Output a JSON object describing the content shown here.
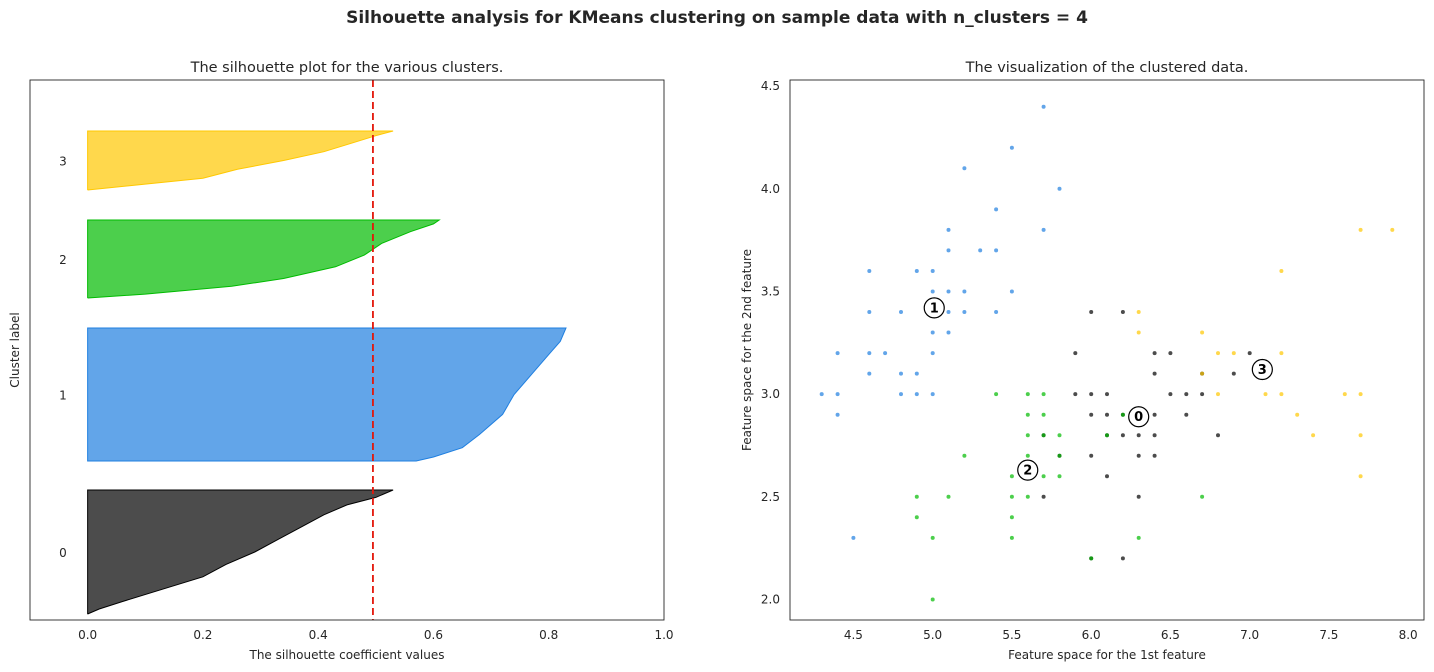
{
  "suptitle": "Silhouette analysis for KMeans clustering on sample data with n_clusters = 4",
  "chart_data": [
    {
      "type": "area",
      "title": "The silhouette plot for the various clusters.",
      "xlabel": "The silhouette coefficient values",
      "ylabel": "Cluster label",
      "xlim": [
        -0.1,
        1.0
      ],
      "xticks": [
        0.0,
        0.2,
        0.4,
        0.6,
        0.8,
        1.0
      ],
      "xtick_labels": [
        "0.0",
        "0.2",
        "0.4",
        "0.6",
        "0.8",
        "1.0"
      ],
      "grid": false,
      "average_silhouette_score": 0.495,
      "average_line_color": "#e3170a",
      "clusters": [
        {
          "label": "0",
          "color": "#000000",
          "max_value": 0.53,
          "min_value": 0.0,
          "profile": [
            [
              0,
              0.53
            ],
            [
              0.06,
              0.5
            ],
            [
              0.12,
              0.45
            ],
            [
              0.2,
              0.41
            ],
            [
              0.3,
              0.37
            ],
            [
              0.4,
              0.33
            ],
            [
              0.5,
              0.29
            ],
            [
              0.6,
              0.24
            ],
            [
              0.7,
              0.2
            ],
            [
              0.8,
              0.13
            ],
            [
              0.9,
              0.06
            ],
            [
              0.96,
              0.02
            ],
            [
              1,
              0.0
            ]
          ]
        },
        {
          "label": "1",
          "color": "#1f7fe0",
          "max_value": 0.83,
          "min_value": 0.57,
          "profile": [
            [
              0,
              0.83
            ],
            [
              0.1,
              0.82
            ],
            [
              0.2,
              0.8
            ],
            [
              0.35,
              0.77
            ],
            [
              0.5,
              0.74
            ],
            [
              0.65,
              0.72
            ],
            [
              0.8,
              0.68
            ],
            [
              0.9,
              0.65
            ],
            [
              0.97,
              0.6
            ],
            [
              1,
              0.57
            ]
          ]
        },
        {
          "label": "2",
          "color": "#00bb00",
          "max_value": 0.61,
          "min_value": 0.0,
          "profile": [
            [
              0,
              0.61
            ],
            [
              0.05,
              0.6
            ],
            [
              0.15,
              0.56
            ],
            [
              0.3,
              0.51
            ],
            [
              0.45,
              0.48
            ],
            [
              0.6,
              0.43
            ],
            [
              0.75,
              0.34
            ],
            [
              0.85,
              0.25
            ],
            [
              0.95,
              0.1
            ],
            [
              1,
              0.0
            ]
          ]
        },
        {
          "label": "3",
          "color": "#ffc800",
          "max_value": 0.53,
          "min_value": 0.0,
          "profile": [
            [
              0,
              0.53
            ],
            [
              0.08,
              0.5
            ],
            [
              0.2,
              0.46
            ],
            [
              0.35,
              0.41
            ],
            [
              0.5,
              0.34
            ],
            [
              0.65,
              0.26
            ],
            [
              0.8,
              0.2
            ],
            [
              0.9,
              0.1
            ],
            [
              1,
              0.0
            ]
          ]
        }
      ]
    },
    {
      "type": "scatter",
      "title": "The visualization of the clustered data.",
      "xlabel": "Feature space for the 1st feature",
      "ylabel": "Feature space for the 2nd feature",
      "xlim": [
        4.1,
        8.1
      ],
      "ylim": [
        1.9,
        4.53
      ],
      "xticks": [
        4.5,
        5.0,
        5.5,
        6.0,
        6.5,
        7.0,
        7.5,
        8.0
      ],
      "xtick_labels": [
        "4.5",
        "5.0",
        "5.5",
        "6.0",
        "6.5",
        "7.0",
        "7.5",
        "8.0"
      ],
      "yticks": [
        2.0,
        2.5,
        3.0,
        3.5,
        4.0,
        4.5
      ],
      "ytick_labels": [
        "2.0",
        "2.5",
        "3.0",
        "3.5",
        "4.0",
        "4.5"
      ],
      "grid": false,
      "series": [
        {
          "cluster": "0",
          "color": "#000000",
          "points": [
            [
              5.7,
              2.5
            ],
            [
              5.7,
              2.8
            ],
            [
              5.8,
              2.7
            ],
            [
              5.9,
              3.0
            ],
            [
              5.9,
              3.2
            ],
            [
              6.0,
              2.2
            ],
            [
              6.0,
              2.7
            ],
            [
              6.0,
              2.9
            ],
            [
              6.0,
              3.0
            ],
            [
              6.0,
              3.4
            ],
            [
              6.1,
              2.6
            ],
            [
              6.1,
              2.8
            ],
            [
              6.1,
              2.9
            ],
            [
              6.1,
              3.0
            ],
            [
              6.2,
              2.2
            ],
            [
              6.2,
              2.8
            ],
            [
              6.2,
              2.9
            ],
            [
              6.2,
              3.4
            ],
            [
              6.3,
              2.5
            ],
            [
              6.3,
              2.7
            ],
            [
              6.3,
              2.8
            ],
            [
              6.4,
              2.7
            ],
            [
              6.4,
              2.8
            ],
            [
              6.4,
              2.9
            ],
            [
              6.4,
              3.1
            ],
            [
              6.4,
              3.2
            ],
            [
              6.5,
              3.0
            ],
            [
              6.5,
              3.2
            ],
            [
              6.6,
              2.9
            ],
            [
              6.6,
              3.0
            ],
            [
              6.7,
              3.0
            ],
            [
              6.7,
              3.1
            ],
            [
              6.8,
              2.8
            ],
            [
              6.9,
              3.1
            ],
            [
              7.0,
              3.2
            ]
          ]
        },
        {
          "cluster": "1",
          "color": "#1f7fe0",
          "points": [
            [
              4.3,
              3.0
            ],
            [
              4.4,
              2.9
            ],
            [
              4.4,
              3.0
            ],
            [
              4.4,
              3.2
            ],
            [
              4.5,
              2.3
            ],
            [
              4.6,
              3.1
            ],
            [
              4.6,
              3.2
            ],
            [
              4.6,
              3.4
            ],
            [
              4.6,
              3.6
            ],
            [
              4.7,
              3.2
            ],
            [
              4.8,
              3.0
            ],
            [
              4.8,
              3.1
            ],
            [
              4.8,
              3.4
            ],
            [
              4.9,
              3.0
            ],
            [
              4.9,
              3.1
            ],
            [
              4.9,
              3.6
            ],
            [
              5.0,
              3.0
            ],
            [
              5.0,
              3.2
            ],
            [
              5.0,
              3.3
            ],
            [
              5.0,
              3.4
            ],
            [
              5.0,
              3.5
            ],
            [
              5.0,
              3.6
            ],
            [
              5.1,
              3.3
            ],
            [
              5.1,
              3.4
            ],
            [
              5.1,
              3.5
            ],
            [
              5.1,
              3.7
            ],
            [
              5.1,
              3.8
            ],
            [
              5.2,
              3.4
            ],
            [
              5.2,
              3.5
            ],
            [
              5.2,
              4.1
            ],
            [
              5.3,
              3.7
            ],
            [
              5.4,
              3.4
            ],
            [
              5.4,
              3.7
            ],
            [
              5.4,
              3.9
            ],
            [
              5.5,
              3.5
            ],
            [
              5.5,
              4.2
            ],
            [
              5.7,
              3.8
            ],
            [
              5.7,
              4.4
            ],
            [
              5.8,
              4.0
            ]
          ]
        },
        {
          "cluster": "2",
          "color": "#00bb00",
          "points": [
            [
              4.9,
              2.4
            ],
            [
              4.9,
              2.5
            ],
            [
              5.0,
              2.0
            ],
            [
              5.0,
              2.3
            ],
            [
              5.1,
              2.5
            ],
            [
              5.2,
              2.7
            ],
            [
              5.4,
              3.0
            ],
            [
              5.5,
              2.3
            ],
            [
              5.5,
              2.4
            ],
            [
              5.5,
              2.5
            ],
            [
              5.5,
              2.6
            ],
            [
              5.6,
              2.5
            ],
            [
              5.6,
              2.7
            ],
            [
              5.6,
              2.8
            ],
            [
              5.6,
              2.9
            ],
            [
              5.6,
              3.0
            ],
            [
              5.7,
              2.6
            ],
            [
              5.7,
              2.8
            ],
            [
              5.7,
              2.9
            ],
            [
              5.7,
              3.0
            ],
            [
              5.8,
              2.6
            ],
            [
              5.8,
              2.7
            ],
            [
              5.8,
              2.8
            ],
            [
              6.0,
              2.2
            ],
            [
              6.1,
              2.8
            ],
            [
              6.2,
              2.9
            ],
            [
              6.3,
              2.3
            ],
            [
              6.7,
              2.5
            ]
          ]
        },
        {
          "cluster": "3",
          "color": "#ffc800",
          "points": [
            [
              6.3,
              3.3
            ],
            [
              6.3,
              3.4
            ],
            [
              6.7,
              3.1
            ],
            [
              6.7,
              3.3
            ],
            [
              6.8,
              3.0
            ],
            [
              6.8,
              3.2
            ],
            [
              6.9,
              3.2
            ],
            [
              7.1,
              3.0
            ],
            [
              7.2,
              3.0
            ],
            [
              7.2,
              3.2
            ],
            [
              7.2,
              3.6
            ],
            [
              7.3,
              2.9
            ],
            [
              7.4,
              2.8
            ],
            [
              7.6,
              3.0
            ],
            [
              7.7,
              2.6
            ],
            [
              7.7,
              2.8
            ],
            [
              7.7,
              3.0
            ],
            [
              7.7,
              3.8
            ],
            [
              7.9,
              3.8
            ]
          ]
        }
      ],
      "centers": [
        {
          "label": "0",
          "x": 6.3,
          "y": 2.89
        },
        {
          "label": "1",
          "x": 5.01,
          "y": 3.42
        },
        {
          "label": "2",
          "x": 5.6,
          "y": 2.63
        },
        {
          "label": "3",
          "x": 7.08,
          "y": 3.12
        }
      ]
    }
  ]
}
